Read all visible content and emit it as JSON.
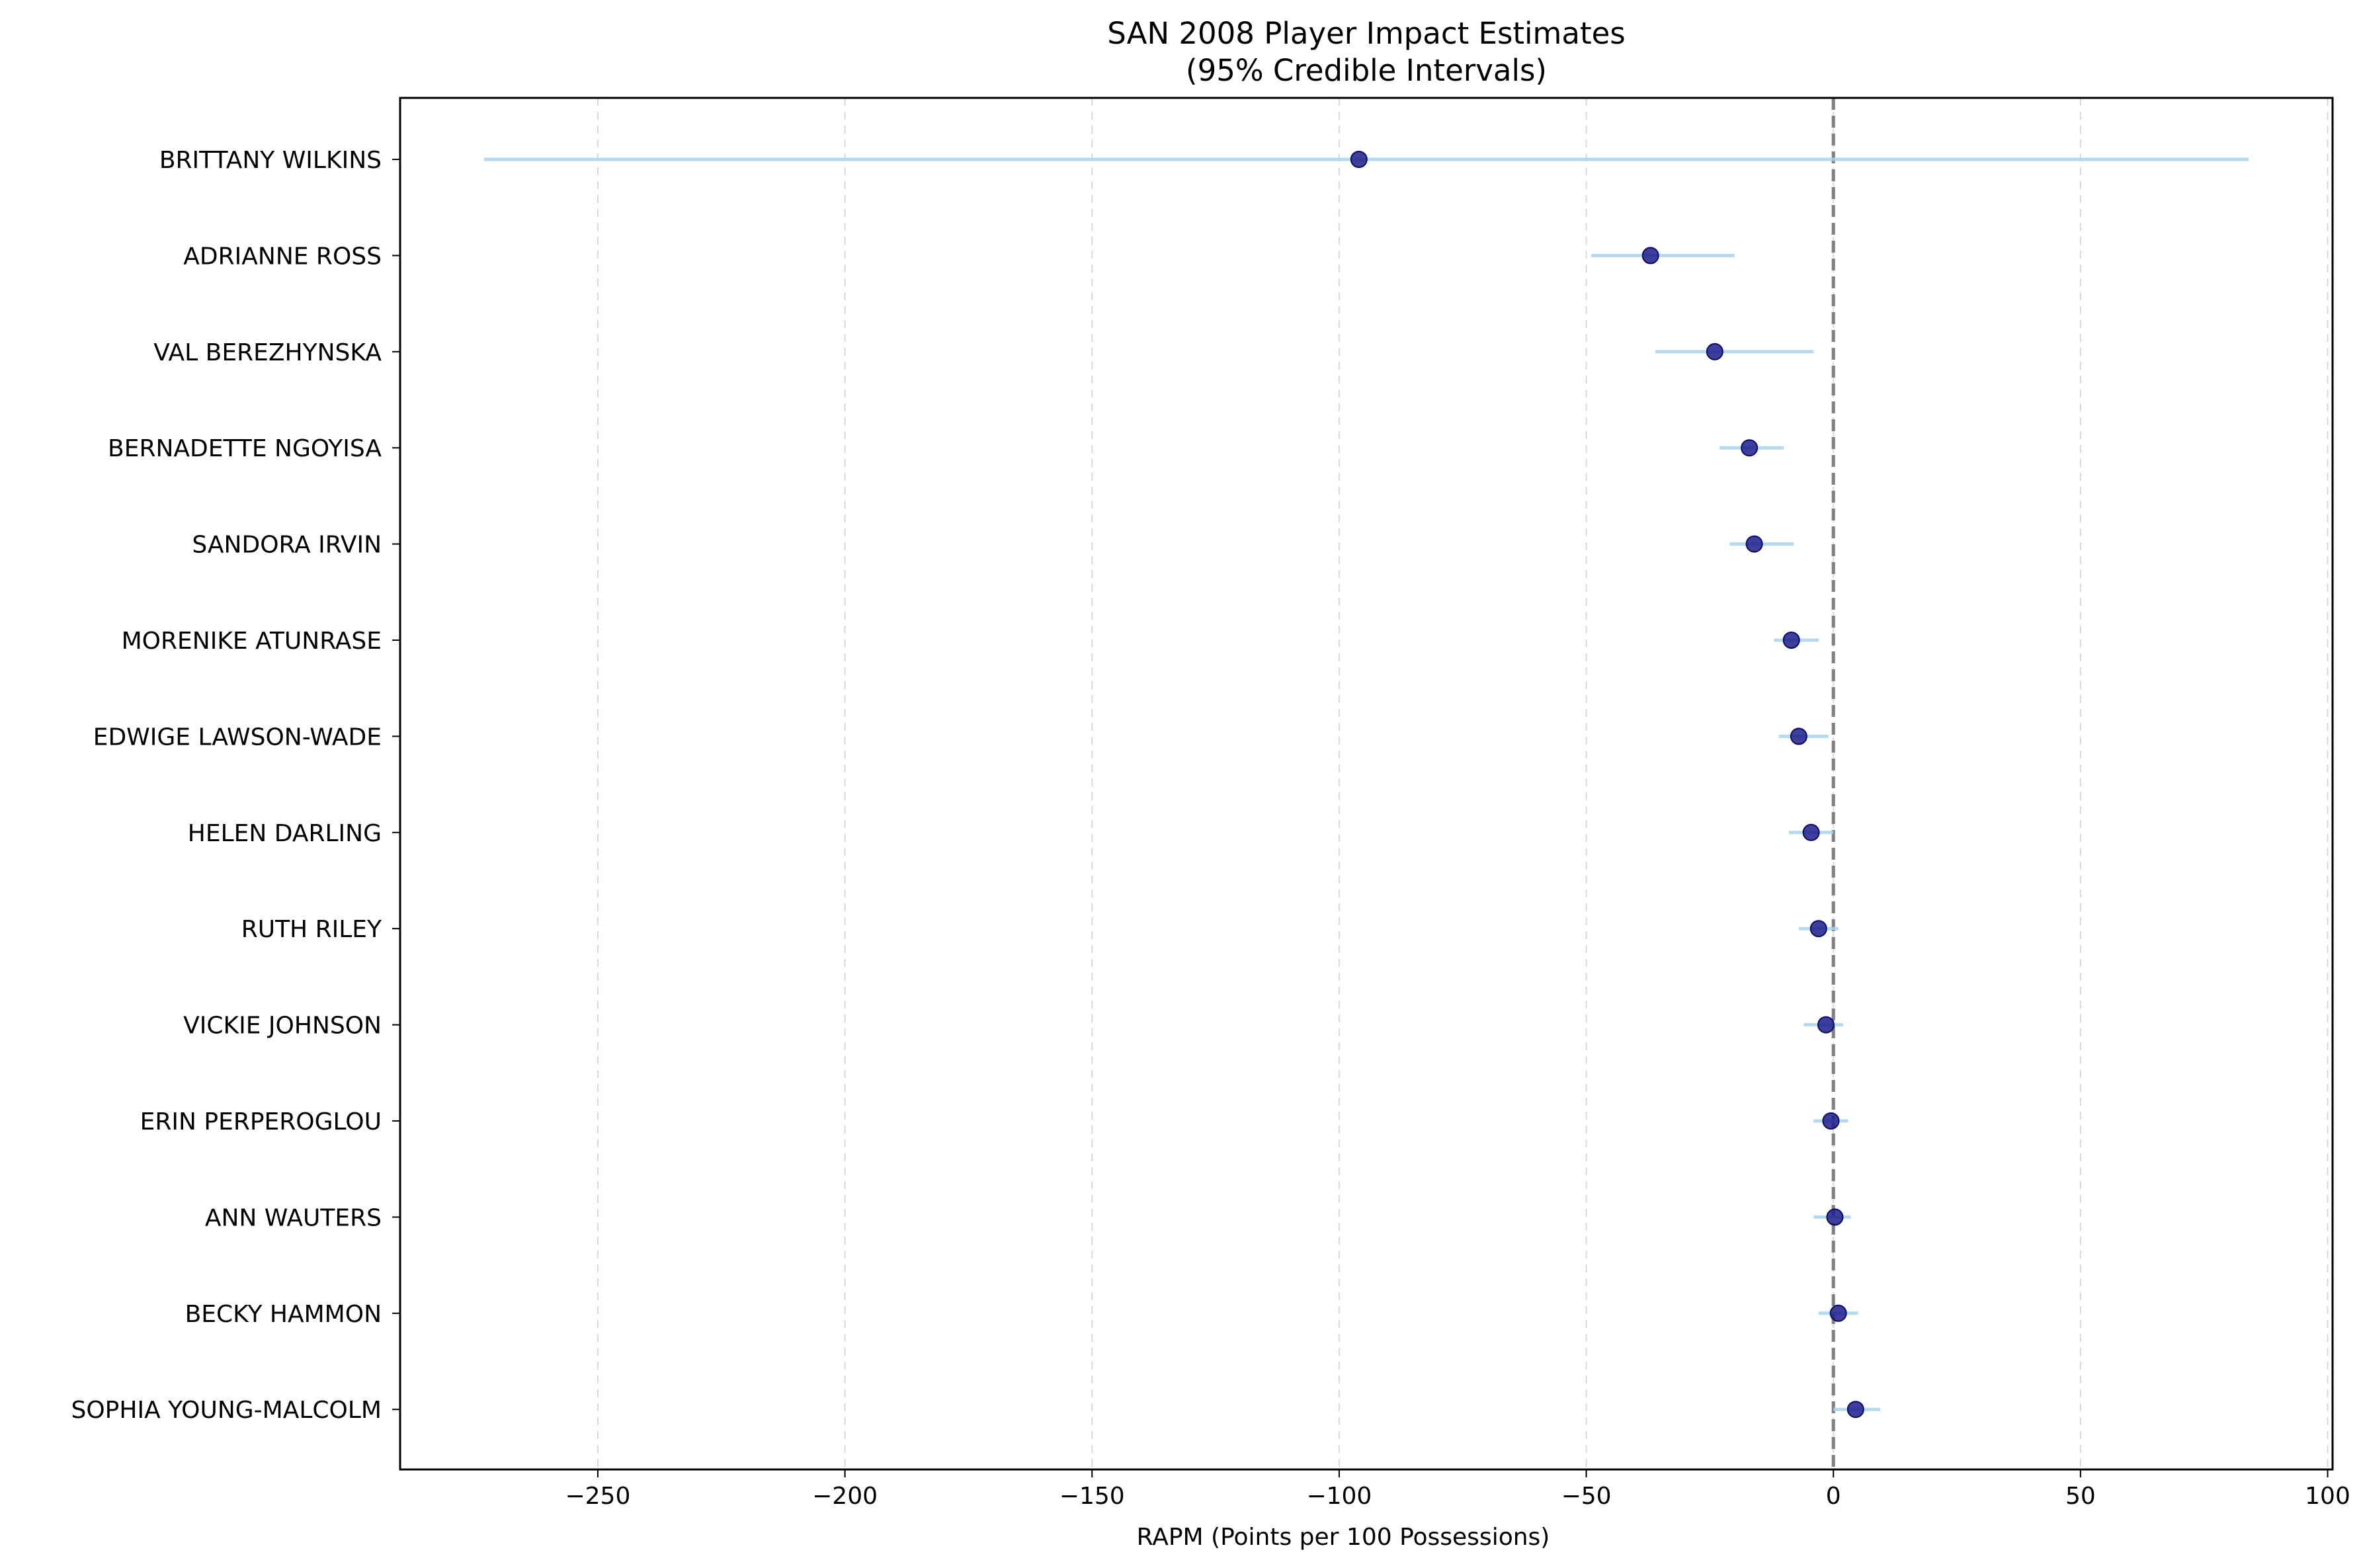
{
  "chart_data": {
    "type": "scatter",
    "subtype": "interval-dot-plot",
    "title": "SAN 2008 Player Impact Estimates",
    "subtitle": "(95% Credible Intervals)",
    "xlabel": "RAPM (Points per 100 Possessions)",
    "ylabel": "",
    "xlim": [
      -290,
      101
    ],
    "x_ticks": [
      -250,
      -200,
      -150,
      -100,
      -50,
      0,
      50,
      100
    ],
    "x_tick_labels": [
      "−250",
      "−200",
      "−150",
      "−100",
      "−50",
      "0",
      "50",
      "100"
    ],
    "grid": "x-dashed",
    "reference_line": {
      "x": 0,
      "style": "dashed",
      "color": "#808080"
    },
    "colors": {
      "point": "#1c1c8c",
      "interval": "#a8d4e8",
      "grid": "#d9d9d9",
      "frame": "#000000"
    },
    "players": [
      {
        "name": "BRITTANY WILKINS",
        "estimate": -96,
        "low": -273,
        "high": 84
      },
      {
        "name": "ADRIANNE ROSS",
        "estimate": -37,
        "low": -49,
        "high": -20
      },
      {
        "name": "VAL BEREZHYNSKA",
        "estimate": -24,
        "low": -36,
        "high": -4
      },
      {
        "name": "BERNADETTE NGOYISA",
        "estimate": -17,
        "low": -23,
        "high": -10
      },
      {
        "name": "SANDORA IRVIN",
        "estimate": -16,
        "low": -21,
        "high": -8
      },
      {
        "name": "MORENIKE ATUNRASE",
        "estimate": -8.5,
        "low": -12,
        "high": -3
      },
      {
        "name": "EDWIGE LAWSON-WADE",
        "estimate": -7,
        "low": -11,
        "high": -1
      },
      {
        "name": "HELEN DARLING",
        "estimate": -4.5,
        "low": -9,
        "high": 0
      },
      {
        "name": "RUTH RILEY",
        "estimate": -3,
        "low": -7,
        "high": 1
      },
      {
        "name": "VICKIE JOHNSON",
        "estimate": -1.5,
        "low": -6,
        "high": 2
      },
      {
        "name": "ERIN PERPEROGLOU",
        "estimate": -0.5,
        "low": -4,
        "high": 3
      },
      {
        "name": "ANN WAUTERS",
        "estimate": 0.3,
        "low": -4,
        "high": 3.5
      },
      {
        "name": "BECKY HAMMON",
        "estimate": 1,
        "low": -3,
        "high": 5
      },
      {
        "name": "SOPHIA YOUNG-MALCOLM",
        "estimate": 4.5,
        "low": 0,
        "high": 9.5
      }
    ]
  }
}
